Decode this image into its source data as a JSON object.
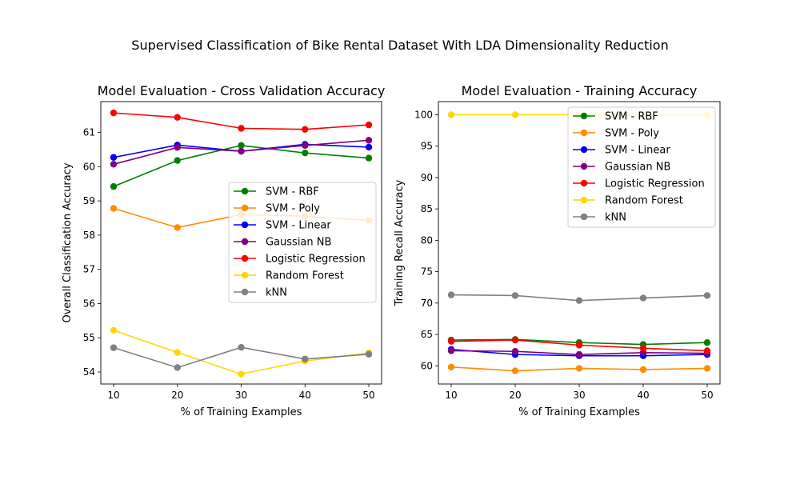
{
  "figure": {
    "suptitle": "Supervised Classification of Bike Rental Dataset With LDA Dimensionality Reduction"
  },
  "chart_data": [
    {
      "type": "line",
      "title": "Model Evaluation - Cross Validation Accuracy",
      "xlabel": "% of Training Examples",
      "ylabel": "Overall Classification Accuracy",
      "x": [
        10,
        20,
        30,
        40,
        50
      ],
      "xticks": [
        "10",
        "20",
        "30",
        "40",
        "50"
      ],
      "xlim": [
        8,
        52
      ],
      "ylim": [
        53.65,
        61.9
      ],
      "yticks": [
        "54",
        "55",
        "56",
        "57",
        "58",
        "59",
        "60",
        "61"
      ],
      "legend": "center-right",
      "series": [
        {
          "name": "SVM - RBF",
          "color": "#008000",
          "values": [
            59.42,
            60.18,
            60.62,
            60.4,
            60.25
          ]
        },
        {
          "name": "SVM - Poly",
          "color": "#ff8c00",
          "values": [
            58.78,
            58.22,
            58.6,
            58.55,
            58.43
          ]
        },
        {
          "name": "SVM - Linear",
          "color": "#0000ff",
          "values": [
            60.27,
            60.63,
            60.45,
            60.65,
            60.57
          ]
        },
        {
          "name": "Gaussian NB",
          "color": "#800080",
          "values": [
            60.07,
            60.56,
            60.45,
            60.62,
            60.77
          ]
        },
        {
          "name": "Logistic Regression",
          "color": "#ff0000",
          "values": [
            61.57,
            61.44,
            61.12,
            61.09,
            61.22
          ]
        },
        {
          "name": "Random Forest",
          "color": "#ffd700",
          "values": [
            55.22,
            54.57,
            53.94,
            54.32,
            54.56
          ]
        },
        {
          "name": "kNN",
          "color": "#808080",
          "values": [
            54.71,
            54.13,
            54.72,
            54.38,
            54.52
          ]
        }
      ]
    },
    {
      "type": "line",
      "title": "Model Evaluation - Training Accuracy",
      "xlabel": "% of Training Examples",
      "ylabel": "Training Recall Accuracy",
      "x": [
        10,
        20,
        30,
        40,
        50
      ],
      "xticks": [
        "10",
        "20",
        "30",
        "40",
        "50"
      ],
      "xlim": [
        8,
        52
      ],
      "ylim": [
        57.1,
        102.1
      ],
      "yticks": [
        "60",
        "65",
        "70",
        "75",
        "80",
        "85",
        "90",
        "95",
        "100"
      ],
      "legend": "top-right",
      "series": [
        {
          "name": "SVM - RBF",
          "color": "#008000",
          "values": [
            64.1,
            64.2,
            63.7,
            63.4,
            63.7
          ]
        },
        {
          "name": "SVM - Poly",
          "color": "#ff8c00",
          "values": [
            59.8,
            59.2,
            59.6,
            59.4,
            59.6
          ]
        },
        {
          "name": "SVM - Linear",
          "color": "#0000ff",
          "values": [
            62.6,
            61.8,
            61.6,
            61.6,
            61.8
          ]
        },
        {
          "name": "Gaussian NB",
          "color": "#800080",
          "values": [
            62.4,
            62.3,
            61.8,
            62.1,
            62.0
          ]
        },
        {
          "name": "Logistic Regression",
          "color": "#ff0000",
          "values": [
            63.9,
            64.1,
            63.3,
            62.8,
            62.4
          ]
        },
        {
          "name": "Random Forest",
          "color": "#ffd700",
          "values": [
            100.0,
            100.0,
            100.0,
            100.0,
            100.0
          ]
        },
        {
          "name": "kNN",
          "color": "#808080",
          "values": [
            71.3,
            71.2,
            70.4,
            70.8,
            71.2
          ]
        }
      ]
    }
  ]
}
